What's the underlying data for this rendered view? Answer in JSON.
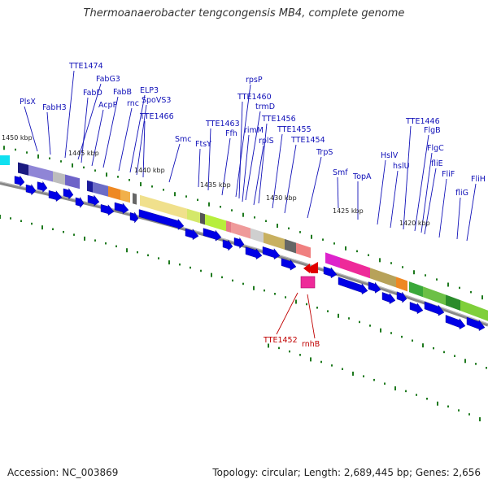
{
  "title": "Thermoanaerobacter tengcongensis MB4, complete genome",
  "footer": {
    "accession": "Accession: NC_003869",
    "info": "Topology: circular; Length: 2,689,445 bp; Genes: 2,656"
  },
  "scale_labels": [
    "1450 kbp",
    "1445 kbp",
    "1440 kbp",
    "1435 kbp",
    "1430 kbp",
    "1425 kbp",
    "1420 kbp"
  ],
  "gene_labels": [
    "PlsX",
    "FabH3",
    "TTE1474",
    "FabG3",
    "FabD",
    "AcpP",
    "FabB",
    "rnc",
    "ELP3",
    "SpoVS3",
    "TTE1466",
    "Smc",
    "FtsY",
    "TTE1463",
    "Ffh",
    "rpsP",
    "TTE1460",
    "trmD",
    "rimM",
    "TTE1456",
    "rplS",
    "TTE1455",
    "TTE1454",
    "TrpS",
    "Smf",
    "TopA",
    "HslV",
    "hslU",
    "TTE1446",
    "FlgB",
    "FlgC",
    "fliE",
    "FliF",
    "fliG",
    "FliH"
  ],
  "minus_strand_labels": [
    "TTE1452",
    "rnhB"
  ],
  "colors": {
    "gene_arrow": "#0000e6",
    "minus_gene": "#e00000",
    "tick": "#1f7a1f",
    "backbone": "#888888",
    "label": "#1010b8",
    "red_label": "#c00000"
  }
}
